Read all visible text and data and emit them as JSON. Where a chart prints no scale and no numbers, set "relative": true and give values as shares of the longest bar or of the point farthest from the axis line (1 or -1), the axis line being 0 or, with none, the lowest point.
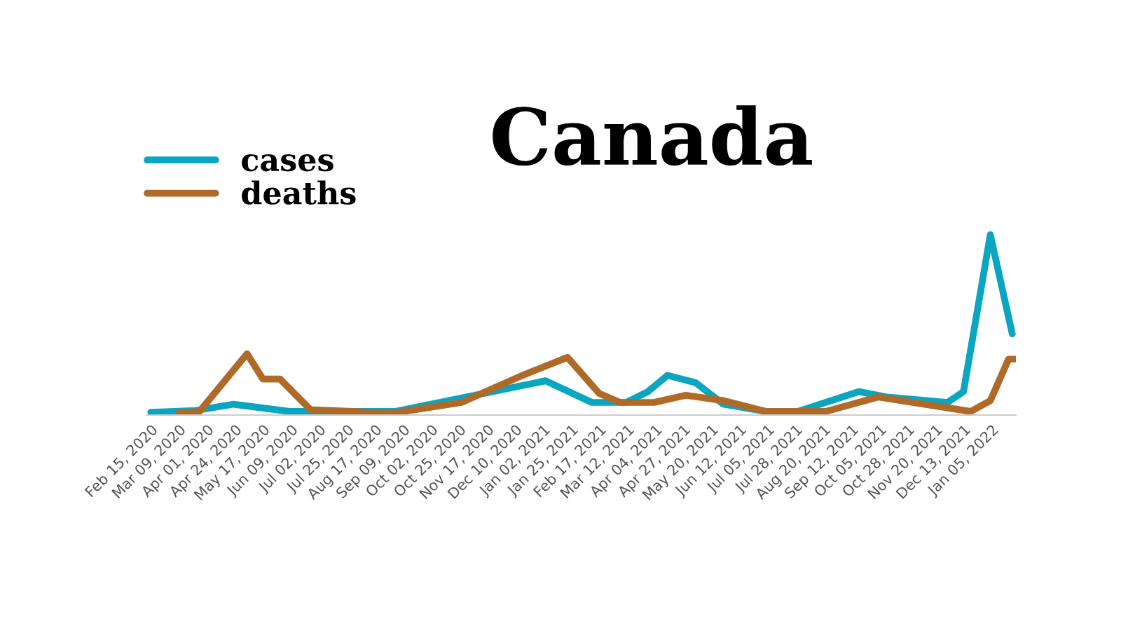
{
  "chart_data": {
    "type": "line",
    "title": "Canada",
    "relative": true,
    "legend": "top left",
    "grid": false,
    "marker": "none",
    "line_style": "solid",
    "xlim": [
      "2020-02-12",
      "2022-01-25"
    ],
    "xticks": [
      {
        "value": "2020-02-15",
        "label": "Feb 15, 2020"
      },
      {
        "value": "2020-03-09",
        "label": "Mar 09, 2020"
      },
      {
        "value": "2020-04-01",
        "label": "Apr 01, 2020"
      },
      {
        "value": "2020-04-24",
        "label": "Apr 24, 2020"
      },
      {
        "value": "2020-05-17",
        "label": "May 17, 2020"
      },
      {
        "value": "2020-06-09",
        "label": "Jun 09, 2020"
      },
      {
        "value": "2020-07-02",
        "label": "Jul 02, 2020"
      },
      {
        "value": "2020-07-25",
        "label": "Jul 25, 2020"
      },
      {
        "value": "2020-08-17",
        "label": "Aug 17, 2020"
      },
      {
        "value": "2020-09-09",
        "label": "Sep 09, 2020"
      },
      {
        "value": "2020-10-02",
        "label": "Oct 02, 2020"
      },
      {
        "value": "2020-10-25",
        "label": "Oct 25, 2020"
      },
      {
        "value": "2020-11-17",
        "label": "Nov 17, 2020"
      },
      {
        "value": "2020-12-10",
        "label": "Dec 10, 2020"
      },
      {
        "value": "2021-01-02",
        "label": "Jan 02, 2021"
      },
      {
        "value": "2021-01-25",
        "label": "Jan 25, 2021"
      },
      {
        "value": "2021-02-17",
        "label": "Feb 17, 2021"
      },
      {
        "value": "2021-03-12",
        "label": "Mar 12, 2021"
      },
      {
        "value": "2021-04-04",
        "label": "Apr 04, 2021"
      },
      {
        "value": "2021-04-27",
        "label": "Apr 27, 2021"
      },
      {
        "value": "2021-05-20",
        "label": "May 20, 2021"
      },
      {
        "value": "2021-06-12",
        "label": "Jun 12, 2021"
      },
      {
        "value": "2021-07-05",
        "label": "Jul 05, 2021"
      },
      {
        "value": "2021-07-28",
        "label": "Jul 28, 2021"
      },
      {
        "value": "2021-08-20",
        "label": "Aug 20, 2021"
      },
      {
        "value": "2021-09-12",
        "label": "Sep 12, 2021"
      },
      {
        "value": "2021-10-05",
        "label": "Oct 05, 2021"
      },
      {
        "value": "2021-10-28",
        "label": "Oct 28, 2021"
      },
      {
        "value": "2021-11-20",
        "label": "Nov 20, 2021"
      },
      {
        "value": "2021-12-13",
        "label": "Dec 13, 2021"
      },
      {
        "value": "2022-01-05",
        "label": "Jan 05, 2022"
      }
    ],
    "series": [
      {
        "name": "cases",
        "color": "#0aa5c0",
        "x": [
          "2020-02-15",
          "2020-03-23",
          "2020-04-23",
          "2020-06-08",
          "2020-09-03",
          "2020-10-31",
          "2021-01-04",
          "2021-02-11",
          "2021-03-11",
          "2021-03-29",
          "2021-04-14",
          "2021-05-07",
          "2021-05-30",
          "2021-07-04",
          "2021-07-30",
          "2021-09-18",
          "2021-10-11",
          "2021-11-30",
          "2021-12-13",
          "2022-01-04",
          "2022-01-22"
        ],
        "values": [
          0.015,
          0.025,
          0.06,
          0.02,
          0.02,
          0.1,
          0.19,
          0.07,
          0.07,
          0.13,
          0.22,
          0.18,
          0.06,
          0.02,
          0.02,
          0.13,
          0.1,
          0.07,
          0.13,
          1,
          0.45
        ]
      },
      {
        "name": "deaths",
        "color": "#b06a28",
        "x": [
          "2020-03-09",
          "2020-03-26",
          "2020-05-04",
          "2020-05-17",
          "2020-05-31",
          "2020-06-25",
          "2020-08-31",
          "2020-10-27",
          "2020-12-16",
          "2021-01-22",
          "2021-02-17",
          "2021-03-06",
          "2021-04-03",
          "2021-04-29",
          "2021-05-30",
          "2021-07-04",
          "2021-08-22",
          "2021-10-04",
          "2021-12-19",
          "2022-01-04",
          "2022-01-19",
          "2022-01-25"
        ],
        "values": [
          0.01,
          0.02,
          0.34,
          0.2,
          0.2,
          0.03,
          0.01,
          0.07,
          0.22,
          0.32,
          0.12,
          0.07,
          0.07,
          0.11,
          0.08,
          0.02,
          0.02,
          0.1,
          0.02,
          0.08,
          0.31,
          0.31
        ]
      }
    ]
  }
}
